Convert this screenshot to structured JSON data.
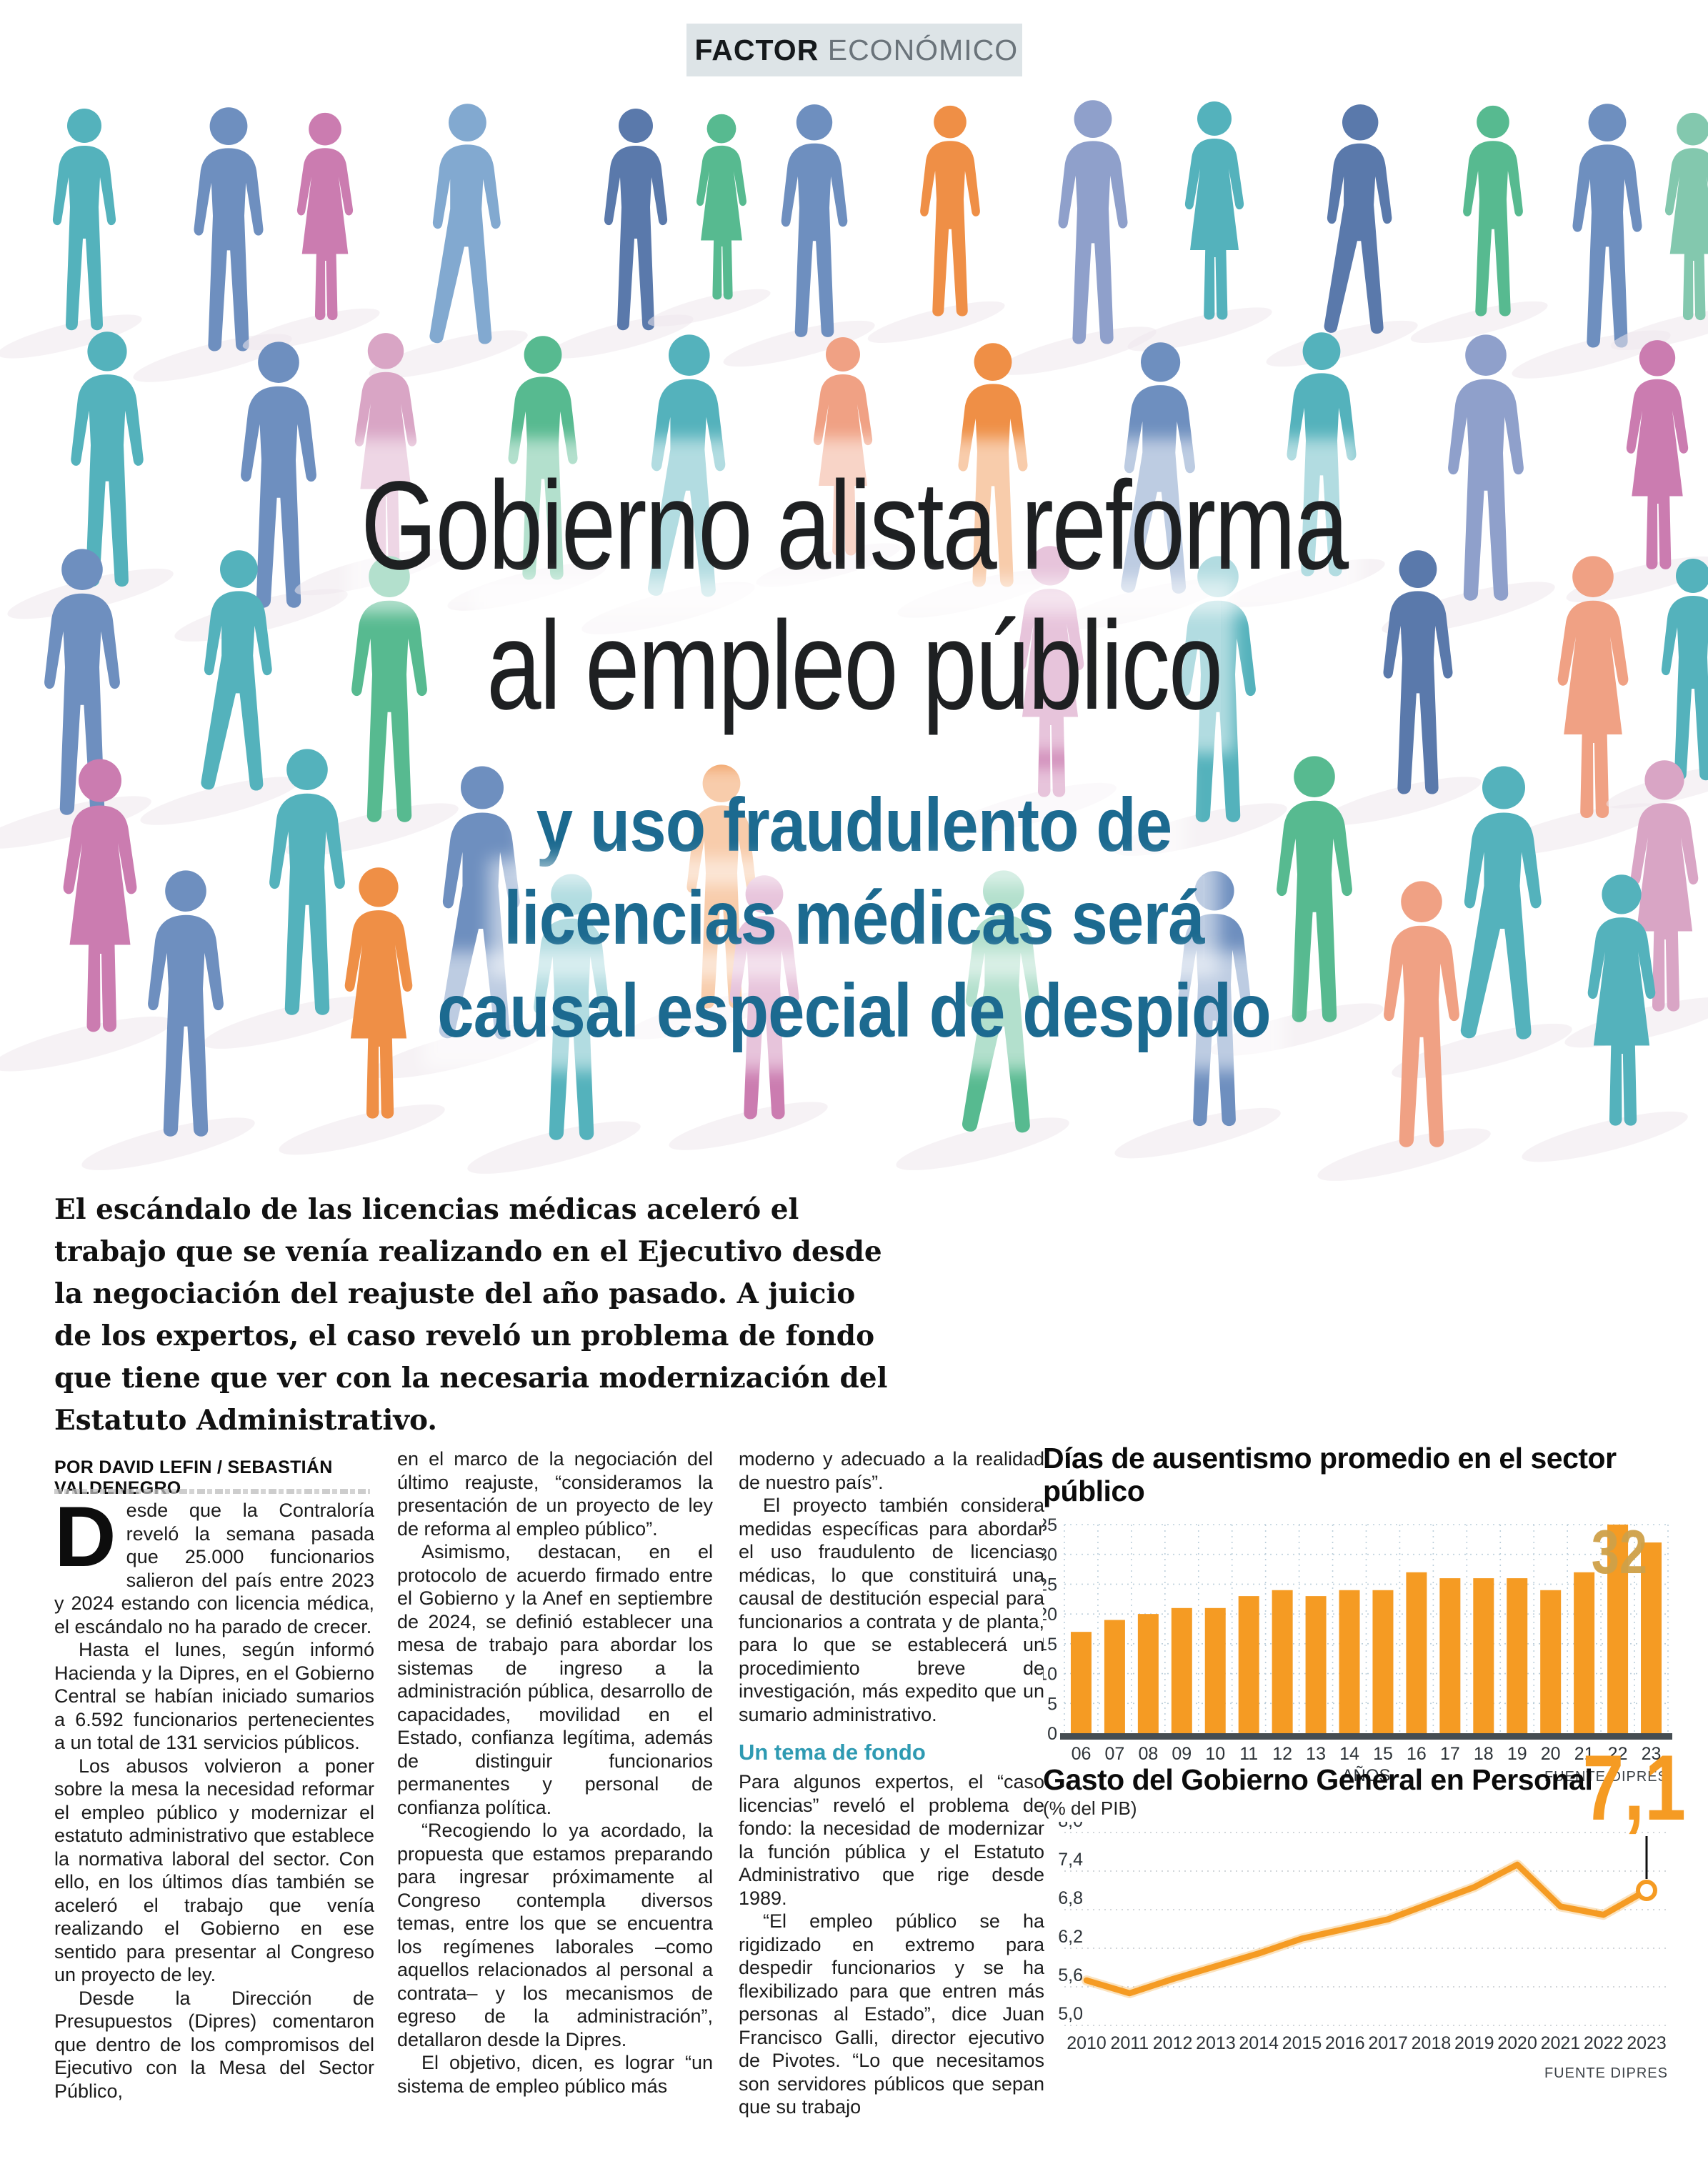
{
  "header": {
    "section_bold": "FACTOR",
    "section_regular": "ECONÓMICO"
  },
  "headline": {
    "line1": "Gobierno alista reforma",
    "line2": "al empleo público"
  },
  "subheadline": {
    "line1": "y uso fraudulento de",
    "line2": "licencias médicas será",
    "line3": "causal especial de despido"
  },
  "lede": "El escándalo de las licencias médicas aceleró el trabajo que se venía realizando en el Ejecutivo desde la negociación del reajuste del año pasado. A juicio de los expertos, el caso reveló un problema de fondo que tiene que ver con la necesaria modernización del Estatuto Administrativo.",
  "byline": "POR DAVID LEFIN / SEBASTIÁN VALDENEGRO",
  "article": {
    "column1": {
      "dropcap": "D",
      "p1": "esde que la Contraloría reveló la semana pasada que 25.000 funcionarios salieron del país entre 2023 y 2024 estando con licencia médica, el escándalo no ha parado de crecer.",
      "p2": "Hasta el lunes, según informó Hacienda y la Dipres, en el Gobierno Central se habían iniciado sumarios a 6.592 funcionarios pertenecientes a un total de 131 servicios públicos.",
      "p3": "Los abusos volvieron a poner sobre la mesa la necesidad reformar el empleo público y modernizar el estatuto administrativo que establece la normativa laboral del sector. Con ello, en los últimos días también se aceleró el trabajo que venía realizando el Gobierno en ese sentido para presentar al Congreso un proyecto de ley.",
      "p4": "Desde la Dirección de Presupuestos (Dipres) comentaron que dentro de los compromisos del Ejecutivo con la Mesa del Sector Público,"
    },
    "column2": {
      "p1": "en el marco de la negociación del último reajuste, “consideramos la presentación de un proyecto de ley de reforma al empleo público”.",
      "p2": "Asimismo, destacan, en el protocolo de acuerdo firmado entre el Gobierno y la Anef en septiembre de 2024, se definió establecer una mesa de trabajo para abordar los sistemas de ingreso a la administración pública, desarrollo de capacidades, movilidad en el Estado, confianza legítima, además de distinguir funcionarios permanentes y personal de confianza política.",
      "p3": "“Recogiendo lo ya acordado, la propuesta que estamos preparando para ingresar próximamente al Congreso contempla diversos temas, entre los que se encuentra los regímenes laborales –como aquellos relacionados al personal a contrata– y los mecanismos de egreso de la administración”, detallaron desde la Dipres.",
      "p4": "El objetivo, dicen, es lograr “un sistema de empleo público más"
    },
    "column3": {
      "p1": "moderno y adecuado a la realidad de nuestro país”.",
      "p2": "El proyecto también considera medidas específicas para abordar el uso fraudulento de licencias médicas, lo que constituirá una causal de destitución especial para funcionarios a contrata y de planta, para lo que se establecerá un procedimiento breve de investigación, más expedito que un sumario administrativo.",
      "subhead": "Un tema de fondo",
      "p3": "Para algunos expertos, el “caso licencias” reveló el problema de fondo: la necesidad de modernizar la función pública y el Estatuto Administrativo que rige desde 1989.",
      "p4": "“El empleo público se ha rigidizado en extremo para despedir funcionarios y se ha flexibilizado para que entren más personas al Estado”, dice Juan Francisco Galli, director ejecutivo de Pivotes. “Lo que necesitamos son servidores públicos que sepan que su trabajo"
    }
  },
  "chart_data": [
    {
      "type": "bar",
      "title": "Días de ausentismo promedio en el sector público",
      "categories": [
        "06",
        "07",
        "08",
        "09",
        "10",
        "11",
        "12",
        "13",
        "14",
        "15",
        "16",
        "17",
        "18",
        "19",
        "20",
        "21",
        "22",
        "23"
      ],
      "values": [
        17,
        19,
        20,
        21,
        21,
        23,
        24,
        23,
        24,
        24,
        27,
        26,
        26,
        26,
        24,
        27,
        35,
        32
      ],
      "xlabel": "AÑOS",
      "ylabel": "",
      "ylim": [
        0,
        35
      ],
      "yticks": [
        0,
        5,
        10,
        15,
        20,
        25,
        30,
        35
      ],
      "grid": true,
      "legend_position": "none",
      "last_bar_label": "32",
      "source": "FUENTE DIPRES",
      "bar_color": "#f59b23",
      "label_color": "#cfa148"
    },
    {
      "type": "line",
      "title": "Gasto del Gobierno General en Personal",
      "subtitle": "(% del PIB)",
      "x": [
        2010,
        2011,
        2012,
        2013,
        2014,
        2015,
        2016,
        2017,
        2018,
        2019,
        2020,
        2021,
        2022,
        2023
      ],
      "values": [
        5.7,
        5.5,
        5.72,
        5.92,
        6.12,
        6.35,
        6.5,
        6.65,
        6.9,
        7.15,
        7.5,
        6.85,
        6.72,
        7.1
      ],
      "ylim": [
        5.0,
        8.0
      ],
      "yticks": [
        8.0,
        7.4,
        6.8,
        6.2,
        5.6,
        5.0
      ],
      "ytick_labels": [
        "8,0",
        "7,4",
        "6,8",
        "6,2",
        "5,6",
        "5,0"
      ],
      "grid": true,
      "legend_position": "none",
      "callout_label": "7,1",
      "source": "FUENTE DIPRES",
      "line_color": "#f59b23"
    }
  ],
  "colors": {
    "accent_orange": "#f59b23",
    "subheadline_blue": "#1c6a90",
    "section_teal": "#2e9ab2",
    "tag_gold": "#e0a43c",
    "tag_background": "#dde4e7",
    "grid_blue": "#bccfdb",
    "baseline_dark": "#454d52"
  },
  "illustration": {
    "palette": [
      "#54b2bc",
      "#6e8fbf",
      "#82a9d0",
      "#cb7cb0",
      "#d9a5c5",
      "#57ba90",
      "#83c8ae",
      "#ef8f46",
      "#f0a184",
      "#8fa0cb",
      "#5a79ab"
    ],
    "figures": [
      [
        118,
        470,
        2.0,
        0,
        0
      ],
      [
        320,
        500,
        2.2,
        1,
        0
      ],
      [
        455,
        460,
        1.9,
        3,
        2
      ],
      [
        650,
        495,
        2.2,
        2,
        1
      ],
      [
        890,
        470,
        2.0,
        10,
        0
      ],
      [
        1010,
        430,
        1.7,
        5,
        2
      ],
      [
        1140,
        480,
        2.1,
        1,
        0
      ],
      [
        1330,
        450,
        1.9,
        7,
        0
      ],
      [
        1530,
        490,
        2.2,
        9,
        0
      ],
      [
        1700,
        460,
        2.0,
        0,
        2
      ],
      [
        1900,
        480,
        2.1,
        10,
        1
      ],
      [
        2090,
        450,
        1.9,
        5,
        0
      ],
      [
        2250,
        495,
        2.2,
        1,
        0
      ],
      [
        2370,
        460,
        1.9,
        6,
        2
      ],
      [
        150,
        830,
        2.3,
        0,
        0
      ],
      [
        390,
        860,
        2.4,
        1,
        0
      ],
      [
        540,
        800,
        2.1,
        4,
        2
      ],
      [
        760,
        820,
        2.2,
        5,
        0
      ],
      [
        960,
        850,
        2.4,
        0,
        1
      ],
      [
        1180,
        790,
        2.0,
        8,
        2
      ],
      [
        1390,
        830,
        2.2,
        7,
        0
      ],
      [
        1620,
        845,
        2.3,
        1,
        1
      ],
      [
        1850,
        815,
        2.2,
        0,
        0
      ],
      [
        2080,
        850,
        2.4,
        9,
        0
      ],
      [
        2320,
        810,
        2.1,
        3,
        2
      ],
      [
        115,
        1150,
        2.4,
        1,
        0
      ],
      [
        330,
        1120,
        2.2,
        0,
        1
      ],
      [
        545,
        1160,
        2.4,
        5,
        0
      ],
      [
        1470,
        1130,
        2.3,
        3,
        2
      ],
      [
        1705,
        1160,
        2.4,
        0,
        0
      ],
      [
        1985,
        1120,
        2.2,
        10,
        0
      ],
      [
        2230,
        1160,
        2.4,
        8,
        2
      ],
      [
        2370,
        1100,
        2.0,
        0,
        0
      ],
      [
        140,
        1460,
        2.5,
        3,
        2
      ],
      [
        430,
        1430,
        2.4,
        0,
        0
      ],
      [
        670,
        1470,
        2.5,
        1,
        1
      ],
      [
        1010,
        1420,
        2.2,
        7,
        0
      ],
      [
        1840,
        1440,
        2.4,
        5,
        0
      ],
      [
        2100,
        1470,
        2.5,
        0,
        1
      ],
      [
        2330,
        1430,
        2.3,
        4,
        2
      ],
      [
        260,
        1600,
        2.4,
        1,
        0
      ],
      [
        530,
        1580,
        2.3,
        7,
        2
      ],
      [
        800,
        1605,
        2.4,
        0,
        0
      ],
      [
        1070,
        1575,
        2.2,
        3,
        0
      ],
      [
        1400,
        1600,
        2.4,
        5,
        1
      ],
      [
        1700,
        1585,
        2.3,
        1,
        0
      ],
      [
        1990,
        1615,
        2.4,
        8,
        0
      ],
      [
        2270,
        1590,
        2.3,
        0,
        2
      ]
    ]
  }
}
